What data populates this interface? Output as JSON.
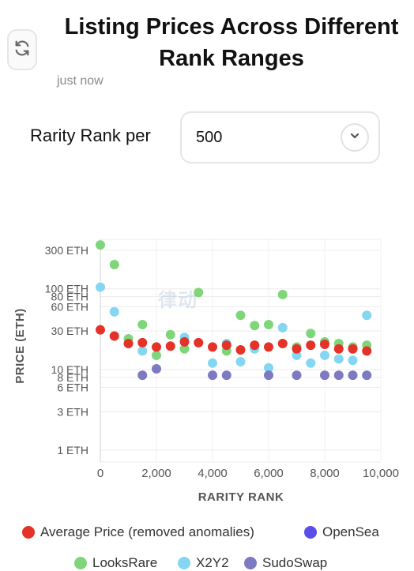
{
  "header": {
    "title_line1": "Listing Prices Across Different",
    "title_line2": "Rank Ranges",
    "timestamp": "just now",
    "refresh_icon": "refresh-icon"
  },
  "controls": {
    "label": "Rarity Rank per",
    "select_value": "500",
    "select_icon": "chevron-down-icon"
  },
  "chart_data": {
    "type": "scatter",
    "xlabel": "RARITY RANK",
    "ylabel": "PRICE (ETH)",
    "x_scale": "linear",
    "y_scale": "log",
    "xlim": [
      0,
      10000
    ],
    "ylim": [
      1,
      400
    ],
    "x_ticks": [
      {
        "value": 0,
        "label": "0"
      },
      {
        "value": 2000,
        "label": "2,000"
      },
      {
        "value": 4000,
        "label": "4,000"
      },
      {
        "value": 6000,
        "label": "6,000"
      },
      {
        "value": 8000,
        "label": "8,000"
      },
      {
        "value": 10000,
        "label": "10,000"
      }
    ],
    "y_ticks": [
      {
        "value": 1,
        "label": "1 ETH"
      },
      {
        "value": 3,
        "label": "3 ETH"
      },
      {
        "value": 6,
        "label": "6 ETH"
      },
      {
        "value": 8,
        "label": "8 ETH"
      },
      {
        "value": 10,
        "label": "10 ETH"
      },
      {
        "value": 30,
        "label": "30 ETH"
      },
      {
        "value": 60,
        "label": "60 ETH"
      },
      {
        "value": 80,
        "label": "80 ETH"
      },
      {
        "value": 100,
        "label": "100 ETH"
      },
      {
        "value": 300,
        "label": "300 ETH"
      }
    ],
    "grid": true,
    "legend_position": "bottom",
    "series": [
      {
        "name": "LooksRare",
        "color": "#7fd67a",
        "x": [
          0,
          500,
          1000,
          1500,
          2000,
          2500,
          3000,
          3500,
          4500,
          5000,
          5500,
          6000,
          6500,
          7000,
          7500,
          8000,
          8500,
          9000,
          9500
        ],
        "y": [
          350,
          200,
          24,
          36,
          15,
          27,
          18,
          90,
          17,
          47,
          35,
          36,
          85,
          19,
          28,
          22,
          21,
          19,
          20
        ]
      },
      {
        "name": "X2Y2",
        "color": "#84d6f2",
        "x": [
          0,
          500,
          1500,
          3000,
          4000,
          4500,
          5000,
          5500,
          6000,
          6500,
          7000,
          7500,
          8000,
          8500,
          9000,
          9500
        ],
        "y": [
          105,
          52,
          17,
          25,
          12,
          21,
          12.5,
          18,
          10.5,
          33,
          15,
          12,
          15,
          13.5,
          13,
          47
        ]
      },
      {
        "name": "SudoSwap",
        "color": "#7d7ac2",
        "x": [
          1500,
          2000,
          4000,
          4500,
          6000,
          7000,
          8000,
          8500,
          9000,
          9500
        ],
        "y": [
          8.5,
          10.2,
          8.5,
          8.5,
          8.5,
          8.5,
          8.5,
          8.5,
          8.5,
          8.5
        ]
      },
      {
        "name": "Average Price (removed anomalies)",
        "color": "#e53228",
        "x": [
          0,
          500,
          1000,
          1500,
          2000,
          2500,
          3000,
          3500,
          4000,
          4500,
          5000,
          5500,
          6000,
          6500,
          7000,
          7500,
          8000,
          8500,
          9000,
          9500
        ],
        "y": [
          31,
          26,
          21,
          21.5,
          19,
          19.5,
          22,
          21.5,
          19,
          20,
          17.5,
          20,
          19,
          21,
          18,
          20,
          20.5,
          18,
          18,
          17
        ]
      }
    ],
    "legend": [
      {
        "name": "Average Price (removed anomalies)",
        "color": "#e53228"
      },
      {
        "name": "OpenSea",
        "color": "#5b4de8"
      },
      {
        "name": "LooksRare",
        "color": "#7fd67a"
      },
      {
        "name": "X2Y2",
        "color": "#84d6f2"
      },
      {
        "name": "SudoSwap",
        "color": "#7d7ac2"
      }
    ]
  },
  "watermark": "律动"
}
